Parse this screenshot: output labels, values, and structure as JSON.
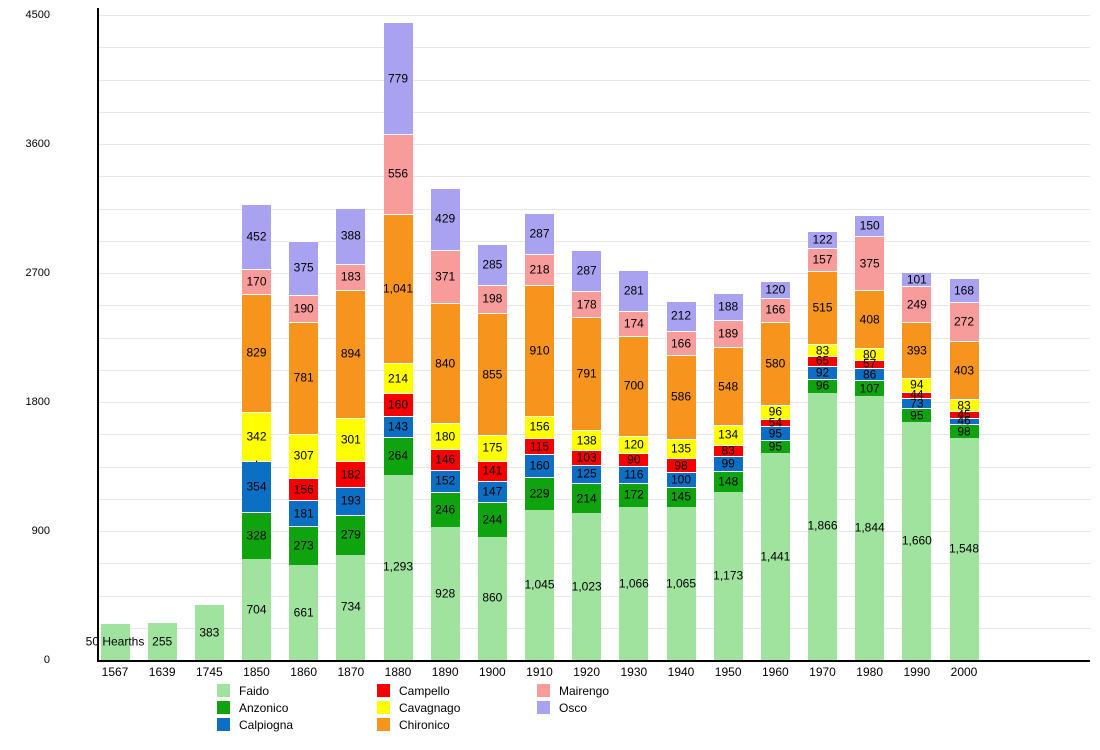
{
  "chart_data": {
    "type": "bar",
    "stacked": true,
    "title": "",
    "xlabel": "",
    "ylabel": "",
    "ylim": [
      0,
      4500
    ],
    "y_ticks": [
      "0",
      "900",
      "1800",
      "2700",
      "3600",
      "4500"
    ],
    "gridline_step": 225,
    "grid": true,
    "legend_position": "bottom",
    "categories": [
      "1567",
      "1639",
      "1745",
      "1850",
      "1860",
      "1870",
      "1880",
      "1890",
      "1900",
      "1910",
      "1920",
      "1930",
      "1940",
      "1950",
      "1960",
      "1970",
      "1980",
      "1990",
      "2000"
    ],
    "first_bar_note": "50 Hearths",
    "series": [
      {
        "name": "Faido",
        "color": "#9FE39F",
        "values": [
          250,
          255,
          383,
          704,
          661,
          734,
          1293,
          928,
          860,
          1045,
          1023,
          1066,
          1065,
          1173,
          1441,
          1866,
          1844,
          1660,
          1548
        ],
        "labels": [
          "50 Hearths",
          "255",
          "383",
          "704",
          "661",
          "734",
          "1,293",
          "928",
          "860",
          "1,045",
          "1,023",
          "1,066",
          "1,065",
          "1,173",
          "1,441",
          "1,866",
          "1,844",
          "1,660",
          "1,548"
        ]
      },
      {
        "name": "Anzonico",
        "color": "#0FA30F",
        "values": [
          0,
          0,
          0,
          328,
          273,
          279,
          264,
          246,
          244,
          229,
          214,
          172,
          145,
          148,
          95,
          96,
          107,
          95,
          98
        ],
        "labels": [
          "",
          "",
          "",
          "328",
          "273",
          "279",
          "264",
          "246",
          "244",
          "229",
          "214",
          "172",
          "145",
          "148",
          "95",
          "96",
          "107",
          "95",
          "98"
        ]
      },
      {
        "name": "Calpiogna",
        "color": "#0D6FC4",
        "values": [
          0,
          0,
          0,
          354,
          181,
          193,
          143,
          152,
          147,
          160,
          125,
          116,
          100,
          99,
          95,
          92,
          86,
          73,
          46
        ],
        "labels": [
          "",
          "",
          "",
          "354",
          "181",
          "193",
          "143",
          "152",
          "147",
          "160",
          "125",
          "116",
          "100",
          "99",
          "95",
          "92",
          "86",
          "73",
          "46"
        ]
      },
      {
        "name": "Campello",
        "color": "#F80000",
        "values": [
          0,
          0,
          0,
          0,
          156,
          182,
          160,
          146,
          141,
          115,
          103,
          90,
          98,
          83,
          54,
          65,
          57,
          44,
          45
        ],
        "labels": [
          "",
          "",
          "",
          "·",
          "156",
          "182",
          "160",
          "146",
          "141",
          "115",
          "103",
          "90",
          "98",
          "83",
          "54",
          "65",
          "57",
          "44",
          "45"
        ]
      },
      {
        "name": "Cavagnago",
        "color": "#FFFF00",
        "values": [
          0,
          0,
          0,
          342,
          307,
          301,
          214,
          180,
          175,
          156,
          138,
          120,
          135,
          134,
          96,
          83,
          80,
          94,
          83
        ],
        "labels": [
          "",
          "",
          "",
          "342",
          "307",
          "301",
          "214",
          "180",
          "175",
          "156",
          "138",
          "120",
          "135",
          "134",
          "96",
          "83",
          "80",
          "94",
          "83"
        ]
      },
      {
        "name": "Chironico",
        "color": "#F7941E",
        "values": [
          0,
          0,
          0,
          829,
          781,
          894,
          1041,
          840,
          855,
          910,
          791,
          700,
          586,
          548,
          580,
          515,
          408,
          393,
          403
        ],
        "labels": [
          "",
          "",
          "",
          "829",
          "781",
          "894",
          "1,041",
          "840",
          "855",
          "910",
          "791",
          "700",
          "586",
          "548",
          "580",
          "515",
          "408",
          "393",
          "403"
        ]
      },
      {
        "name": "Mairengo",
        "color": "#F89B9B",
        "values": [
          0,
          0,
          0,
          170,
          190,
          183,
          556,
          371,
          198,
          218,
          178,
          174,
          166,
          189,
          166,
          157,
          375,
          249,
          272
        ],
        "labels": [
          "",
          "",
          "",
          "170",
          "190",
          "183",
          "556",
          "371",
          "198",
          "218",
          "178",
          "174",
          "166",
          "189",
          "166",
          "157",
          "375",
          "249",
          "272"
        ]
      },
      {
        "name": "Osco",
        "color": "#A8A2F0",
        "values": [
          0,
          0,
          0,
          452,
          375,
          388,
          779,
          429,
          285,
          287,
          287,
          281,
          212,
          188,
          120,
          122,
          150,
          101,
          168
        ],
        "labels": [
          "",
          "",
          "",
          "452",
          "375",
          "388",
          "779",
          "429",
          "285",
          "287",
          "287",
          "281",
          "212",
          "188",
          "120",
          "122",
          "150",
          "101",
          "168"
        ]
      }
    ]
  }
}
